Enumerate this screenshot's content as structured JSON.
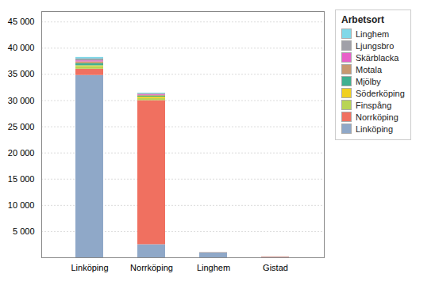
{
  "chart_data": {
    "type": "bar",
    "stacked": true,
    "categories": [
      "Linköping",
      "Norrköping",
      "Linghem",
      "Gistad"
    ],
    "legend_title": "Arbetsort",
    "legend": "upper right",
    "grid": true,
    "series": [
      {
        "name": "Linköping",
        "color": "#8fa8c8",
        "values": [
          34800,
          2500,
          950,
          80
        ]
      },
      {
        "name": "Norrköping",
        "color": "#f07060",
        "values": [
          1200,
          27500,
          30,
          80
        ]
      },
      {
        "name": "Finspång",
        "color": "#b8d455",
        "values": [
          500,
          400,
          10,
          5
        ]
      },
      {
        "name": "Söderköping",
        "color": "#f0d020",
        "values": [
          150,
          280,
          5,
          3
        ]
      },
      {
        "name": "Mjölby",
        "color": "#40b090",
        "values": [
          400,
          180,
          5,
          3
        ]
      },
      {
        "name": "Motala",
        "color": "#c89870",
        "values": [
          350,
          150,
          5,
          3
        ]
      },
      {
        "name": "Skärblacka",
        "color": "#e860c8",
        "values": [
          200,
          150,
          5,
          3
        ]
      },
      {
        "name": "Ljungsbro",
        "color": "#a0a0a8",
        "values": [
          350,
          150,
          5,
          3
        ]
      },
      {
        "name": "Linghem",
        "color": "#80d8e8",
        "values": [
          300,
          130,
          5,
          3
        ]
      }
    ],
    "ylim": [
      0,
      47000
    ],
    "yticks": [
      {
        "value": 0,
        "label": ""
      },
      {
        "value": 5000,
        "label": "5 000"
      },
      {
        "value": 10000,
        "label": "10 000"
      },
      {
        "value": 15000,
        "label": "15 000"
      },
      {
        "value": 20000,
        "label": "20 000"
      },
      {
        "value": 25000,
        "label": "25 000"
      },
      {
        "value": 30000,
        "label": "30 000"
      },
      {
        "value": 35000,
        "label": "35 000"
      },
      {
        "value": 40000,
        "label": "40 000"
      },
      {
        "value": 45000,
        "label": "45 000"
      }
    ]
  }
}
